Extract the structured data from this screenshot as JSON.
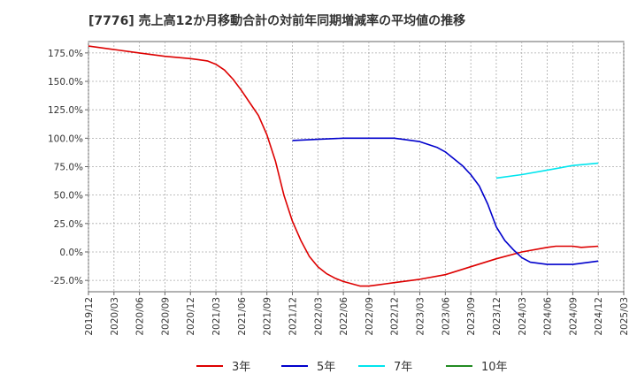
{
  "chart_data": {
    "type": "line",
    "title": "[7776]  売上高12か月移動合計の対前年同期増減率の平均値の推移",
    "xlabel": "",
    "ylabel": "",
    "ylim": [
      -35,
      185
    ],
    "y_ticks": [
      -25,
      0,
      25,
      50,
      75,
      100,
      125,
      150,
      175
    ],
    "y_tick_labels": [
      "-25.0%",
      "0.0%",
      "25.0%",
      "50.0%",
      "75.0%",
      "100.0%",
      "125.0%",
      "150.0%",
      "175.0%"
    ],
    "x_ticks": [
      "2019/12",
      "2020/03",
      "2020/06",
      "2020/09",
      "2020/12",
      "2021/03",
      "2021/06",
      "2021/09",
      "2021/12",
      "2022/03",
      "2022/06",
      "2022/09",
      "2022/12",
      "2023/03",
      "2023/06",
      "2023/09",
      "2023/12",
      "2024/03",
      "2024/06",
      "2024/09",
      "2024/12",
      "2025/03"
    ],
    "grid": true,
    "legend_position": "bottom",
    "series": [
      {
        "name": "3年",
        "color": "#dd0000",
        "points": [
          [
            "2019/12",
            181
          ],
          [
            "2020/03",
            178
          ],
          [
            "2020/06",
            175
          ],
          [
            "2020/09",
            172
          ],
          [
            "2020/12",
            170
          ],
          [
            "2021/01",
            169
          ],
          [
            "2021/02",
            168
          ],
          [
            "2021/03",
            165
          ],
          [
            "2021/04",
            160
          ],
          [
            "2021/05",
            152
          ],
          [
            "2021/06",
            142
          ],
          [
            "2021/07",
            131
          ],
          [
            "2021/08",
            120
          ],
          [
            "2021/09",
            103
          ],
          [
            "2021/10",
            80
          ],
          [
            "2021/11",
            50
          ],
          [
            "2021/12",
            27
          ],
          [
            "2022/01",
            10
          ],
          [
            "2022/02",
            -4
          ],
          [
            "2022/03",
            -13
          ],
          [
            "2022/04",
            -19
          ],
          [
            "2022/05",
            -23
          ],
          [
            "2022/06",
            -26
          ],
          [
            "2022/07",
            -28
          ],
          [
            "2022/08",
            -30
          ],
          [
            "2022/09",
            -30
          ],
          [
            "2022/10",
            -29
          ],
          [
            "2022/11",
            -28
          ],
          [
            "2022/12",
            -27
          ],
          [
            "2023/03",
            -24
          ],
          [
            "2023/06",
            -20
          ],
          [
            "2023/09",
            -13
          ],
          [
            "2023/12",
            -6
          ],
          [
            "2024/03",
            0
          ],
          [
            "2024/06",
            4
          ],
          [
            "2024/07",
            5
          ],
          [
            "2024/08",
            5
          ],
          [
            "2024/09",
            5
          ],
          [
            "2024/10",
            4
          ],
          [
            "2024/12",
            5
          ]
        ]
      },
      {
        "name": "5年",
        "color": "#0000cc",
        "points": [
          [
            "2021/12",
            98
          ],
          [
            "2022/03",
            99
          ],
          [
            "2022/06",
            100
          ],
          [
            "2022/09",
            100
          ],
          [
            "2022/12",
            100
          ],
          [
            "2023/01",
            99
          ],
          [
            "2023/03",
            97
          ],
          [
            "2023/05",
            92
          ],
          [
            "2023/06",
            88
          ],
          [
            "2023/07",
            82
          ],
          [
            "2023/08",
            76
          ],
          [
            "2023/09",
            68
          ],
          [
            "2023/10",
            58
          ],
          [
            "2023/11",
            42
          ],
          [
            "2023/12",
            22
          ],
          [
            "2024/01",
            10
          ],
          [
            "2024/02",
            2
          ],
          [
            "2024/03",
            -5
          ],
          [
            "2024/04",
            -9
          ],
          [
            "2024/05",
            -10
          ],
          [
            "2024/06",
            -11
          ],
          [
            "2024/09",
            -11
          ],
          [
            "2024/10",
            -10
          ],
          [
            "2024/12",
            -8
          ]
        ]
      },
      {
        "name": "7年",
        "color": "#00e5ee",
        "points": [
          [
            "2023/12",
            65
          ],
          [
            "2024/03",
            68
          ],
          [
            "2024/06",
            72
          ],
          [
            "2024/09",
            76
          ],
          [
            "2024/12",
            78
          ]
        ]
      },
      {
        "name": "10年",
        "color": "#228b22",
        "points": []
      }
    ]
  }
}
